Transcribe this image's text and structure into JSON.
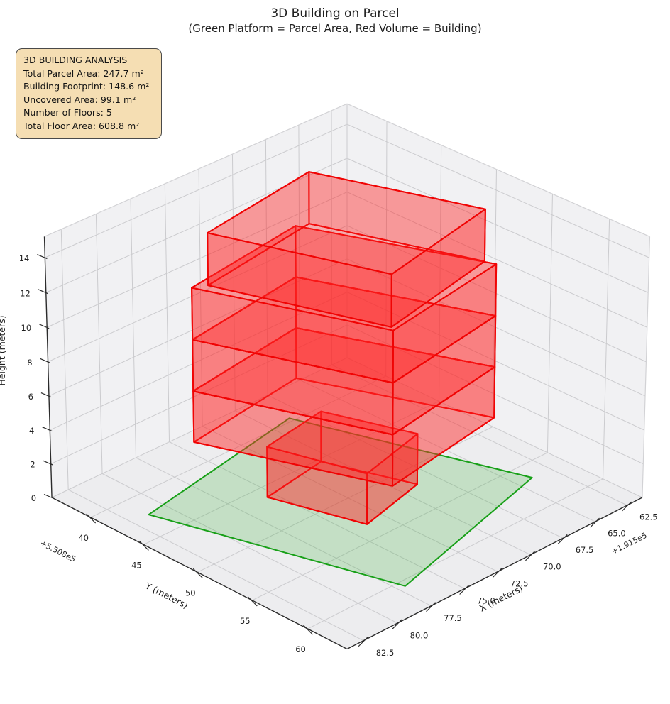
{
  "title": {
    "line1": "3D Building on Parcel",
    "line2": "(Green Platform = Parcel Area, Red Volume = Building)"
  },
  "info_box": {
    "title": "3D BUILDING ANALYSIS",
    "lines": [
      "Total Parcel Area: 247.7 m²",
      "Building Footprint: 148.6 m²",
      "Uncovered Area: 99.1 m²",
      "Number of Floors: 5",
      "Total Floor Area: 608.8 m²"
    ],
    "bg_color": "#f5deb3",
    "border_color": "#4a4a4a"
  },
  "chart_data": {
    "type": "3d-building-on-parcel",
    "legend_note": "Green Platform = Parcel Area, Red Volume = Building",
    "stats": {
      "total_parcel_area_m2": 247.7,
      "building_footprint_m2": 148.6,
      "uncovered_area_m2": 99.1,
      "number_of_floors": 5,
      "total_floor_area_m2": 608.8
    },
    "axes": {
      "x": {
        "label": "X (meters)",
        "offset_text": "+1.915e5",
        "tick_values": [
          62.5,
          65.0,
          67.5,
          70.0,
          72.5,
          75.0,
          77.5,
          80.0,
          82.5
        ],
        "tick_labels": [
          "62.5",
          "65.0",
          "67.5",
          "70.0",
          "72.5",
          "75.0",
          "77.5",
          "80.0",
          "82.5"
        ],
        "range": [
          61.3,
          83.7
        ]
      },
      "y": {
        "label": "Y (meters)",
        "offset_text": "+5.508e5",
        "tick_values": [
          40,
          45,
          50,
          55,
          60
        ],
        "tick_labels": [
          "40",
          "45",
          "50",
          "55",
          "60"
        ],
        "range": [
          36.3,
          63.5
        ]
      },
      "z": {
        "label": "Height (meters)",
        "tick_values": [
          0,
          2,
          4,
          6,
          8,
          10,
          12,
          14
        ],
        "tick_labels": [
          "0",
          "2",
          "4",
          "6",
          "8",
          "10",
          "12",
          "14"
        ],
        "range": [
          0,
          15.2
        ]
      }
    },
    "parcel": {
      "z": 0,
      "polygon_xy": [
        [
          81.3,
          42.4
        ],
        [
          68.5,
          39.6
        ],
        [
          63.9,
          56.6
        ],
        [
          77.0,
          60.6
        ]
      ],
      "fill": "rgba(50,175,50,0.22)",
      "edge": "#18a018"
    },
    "building": {
      "num_floors": 5,
      "floor_height_m": 3,
      "fill": "#ff2626",
      "edge": "#f00404",
      "floors": [
        {
          "name": "floor-1",
          "z": [
            0,
            3
          ],
          "footprint_xy": [
            [
              75.5,
              46.2
            ],
            [
              70.7,
              45.3
            ],
            [
              68.8,
              51.9
            ],
            [
              73.8,
              53.3
            ]
          ]
        },
        {
          "name": "floor-2",
          "z": [
            3,
            6
          ],
          "footprint_xy": [
            [
              77.9,
              42.4
            ],
            [
              69.0,
              40.9
            ],
            [
              64.6,
              53.9
            ],
            [
              73.8,
              55.6
            ]
          ]
        },
        {
          "name": "floor-3",
          "z": [
            6,
            9
          ],
          "footprint_xy": [
            [
              77.9,
              42.4
            ],
            [
              69.0,
              40.9
            ],
            [
              64.6,
              53.9
            ],
            [
              73.8,
              55.6
            ]
          ]
        },
        {
          "name": "floor-4",
          "z": [
            9,
            12
          ],
          "footprint_xy": [
            [
              77.9,
              42.4
            ],
            [
              69.0,
              40.9
            ],
            [
              64.6,
              53.9
            ],
            [
              73.8,
              55.6
            ]
          ]
        },
        {
          "name": "floor-5",
          "z": [
            12,
            15
          ],
          "footprint_xy": [
            [
              77.1,
              42.9
            ],
            [
              68.3,
              41.3
            ],
            [
              64.8,
              53.1
            ],
            [
              73.6,
              55.2
            ]
          ]
        }
      ]
    },
    "style": {
      "pane_wall": "#f1f1f3",
      "pane_floor": "#ededef",
      "pane_edge": "#d2d2d5",
      "grid": "#cbcbce",
      "axis_line": "#2b2b2b",
      "tick_text": "#1f1f1f"
    }
  }
}
